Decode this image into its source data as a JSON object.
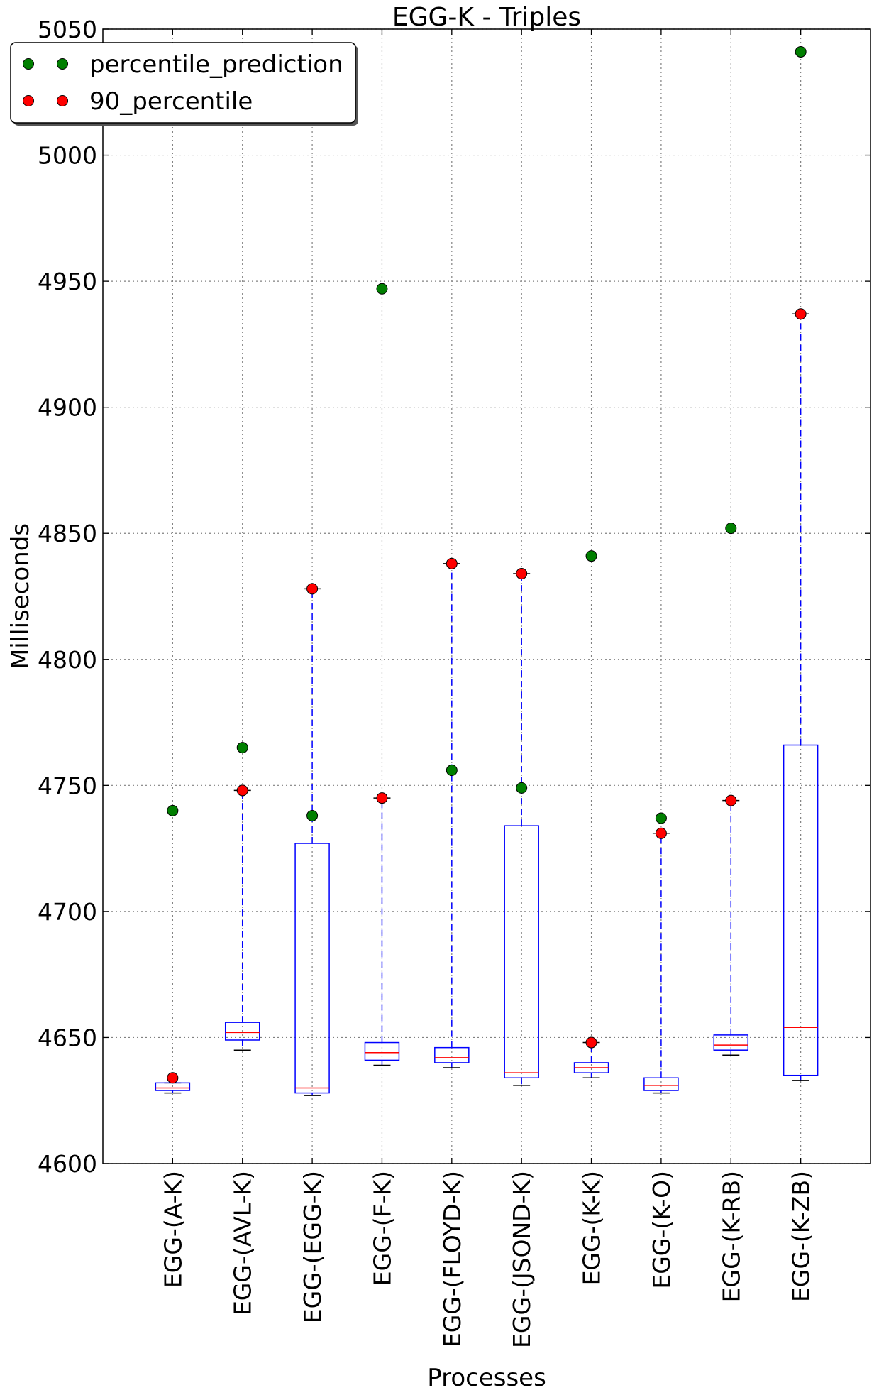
{
  "chart_data": {
    "type": "box",
    "title": "EGG-K - Triples",
    "xlabel": "Processes",
    "ylabel": "Milliseconds",
    "ylim": [
      4600,
      5050
    ],
    "yticks": [
      4600,
      4650,
      4700,
      4750,
      4800,
      4850,
      4900,
      4950,
      5000,
      5050
    ],
    "grid": true,
    "legend_position": "top-left",
    "colors": {
      "box": "#0000ff",
      "median": "#ff0000",
      "percentile_prediction": "#007f00",
      "90_percentile": "#ff0000"
    },
    "legend": [
      {
        "label": "percentile_prediction",
        "color": "#007f00"
      },
      {
        "label": "90_percentile",
        "color": "#ff0000"
      }
    ],
    "categories": [
      "EGG-(A-K)",
      "EGG-(AVL-K)",
      "EGG-(EGG-K)",
      "EGG-(F-K)",
      "EGG-(FLOYD-K)",
      "EGG-(JSOND-K)",
      "EGG-(K-K)",
      "EGG-(K-O)",
      "EGG-(K-RB)",
      "EGG-(K-ZB)"
    ],
    "boxes": [
      {
        "whisker_low": 4628,
        "q1": 4629,
        "median": 4630,
        "q3": 4632,
        "whisker_high": 4632,
        "p90": 4634,
        "prediction": 4740
      },
      {
        "whisker_low": 4645,
        "q1": 4649,
        "median": 4652,
        "q3": 4656,
        "whisker_high": 4748,
        "p90": 4748,
        "prediction": 4765
      },
      {
        "whisker_low": 4627,
        "q1": 4628,
        "median": 4630,
        "q3": 4727,
        "whisker_high": 4828,
        "p90": 4828,
        "prediction": 4738
      },
      {
        "whisker_low": 4639,
        "q1": 4641,
        "median": 4644,
        "q3": 4648,
        "whisker_high": 4745,
        "p90": 4745,
        "prediction": 4947
      },
      {
        "whisker_low": 4638,
        "q1": 4640,
        "median": 4642,
        "q3": 4646,
        "whisker_high": 4838,
        "p90": 4838,
        "prediction": 4756
      },
      {
        "whisker_low": 4631,
        "q1": 4634,
        "median": 4636,
        "q3": 4734,
        "whisker_high": 4834,
        "p90": 4834,
        "prediction": 4749
      },
      {
        "whisker_low": 4634,
        "q1": 4636,
        "median": 4638,
        "q3": 4640,
        "whisker_high": 4648,
        "p90": 4648,
        "prediction": 4841
      },
      {
        "whisker_low": 4628,
        "q1": 4629,
        "median": 4631,
        "q3": 4634,
        "whisker_high": 4731,
        "p90": 4731,
        "prediction": 4737
      },
      {
        "whisker_low": 4643,
        "q1": 4645,
        "median": 4647,
        "q3": 4651,
        "whisker_high": 4744,
        "p90": 4744,
        "prediction": 4852
      },
      {
        "whisker_low": 4633,
        "q1": 4635,
        "median": 4654,
        "q3": 4766,
        "whisker_high": 4937,
        "p90": 4937,
        "prediction": 5041
      }
    ]
  }
}
